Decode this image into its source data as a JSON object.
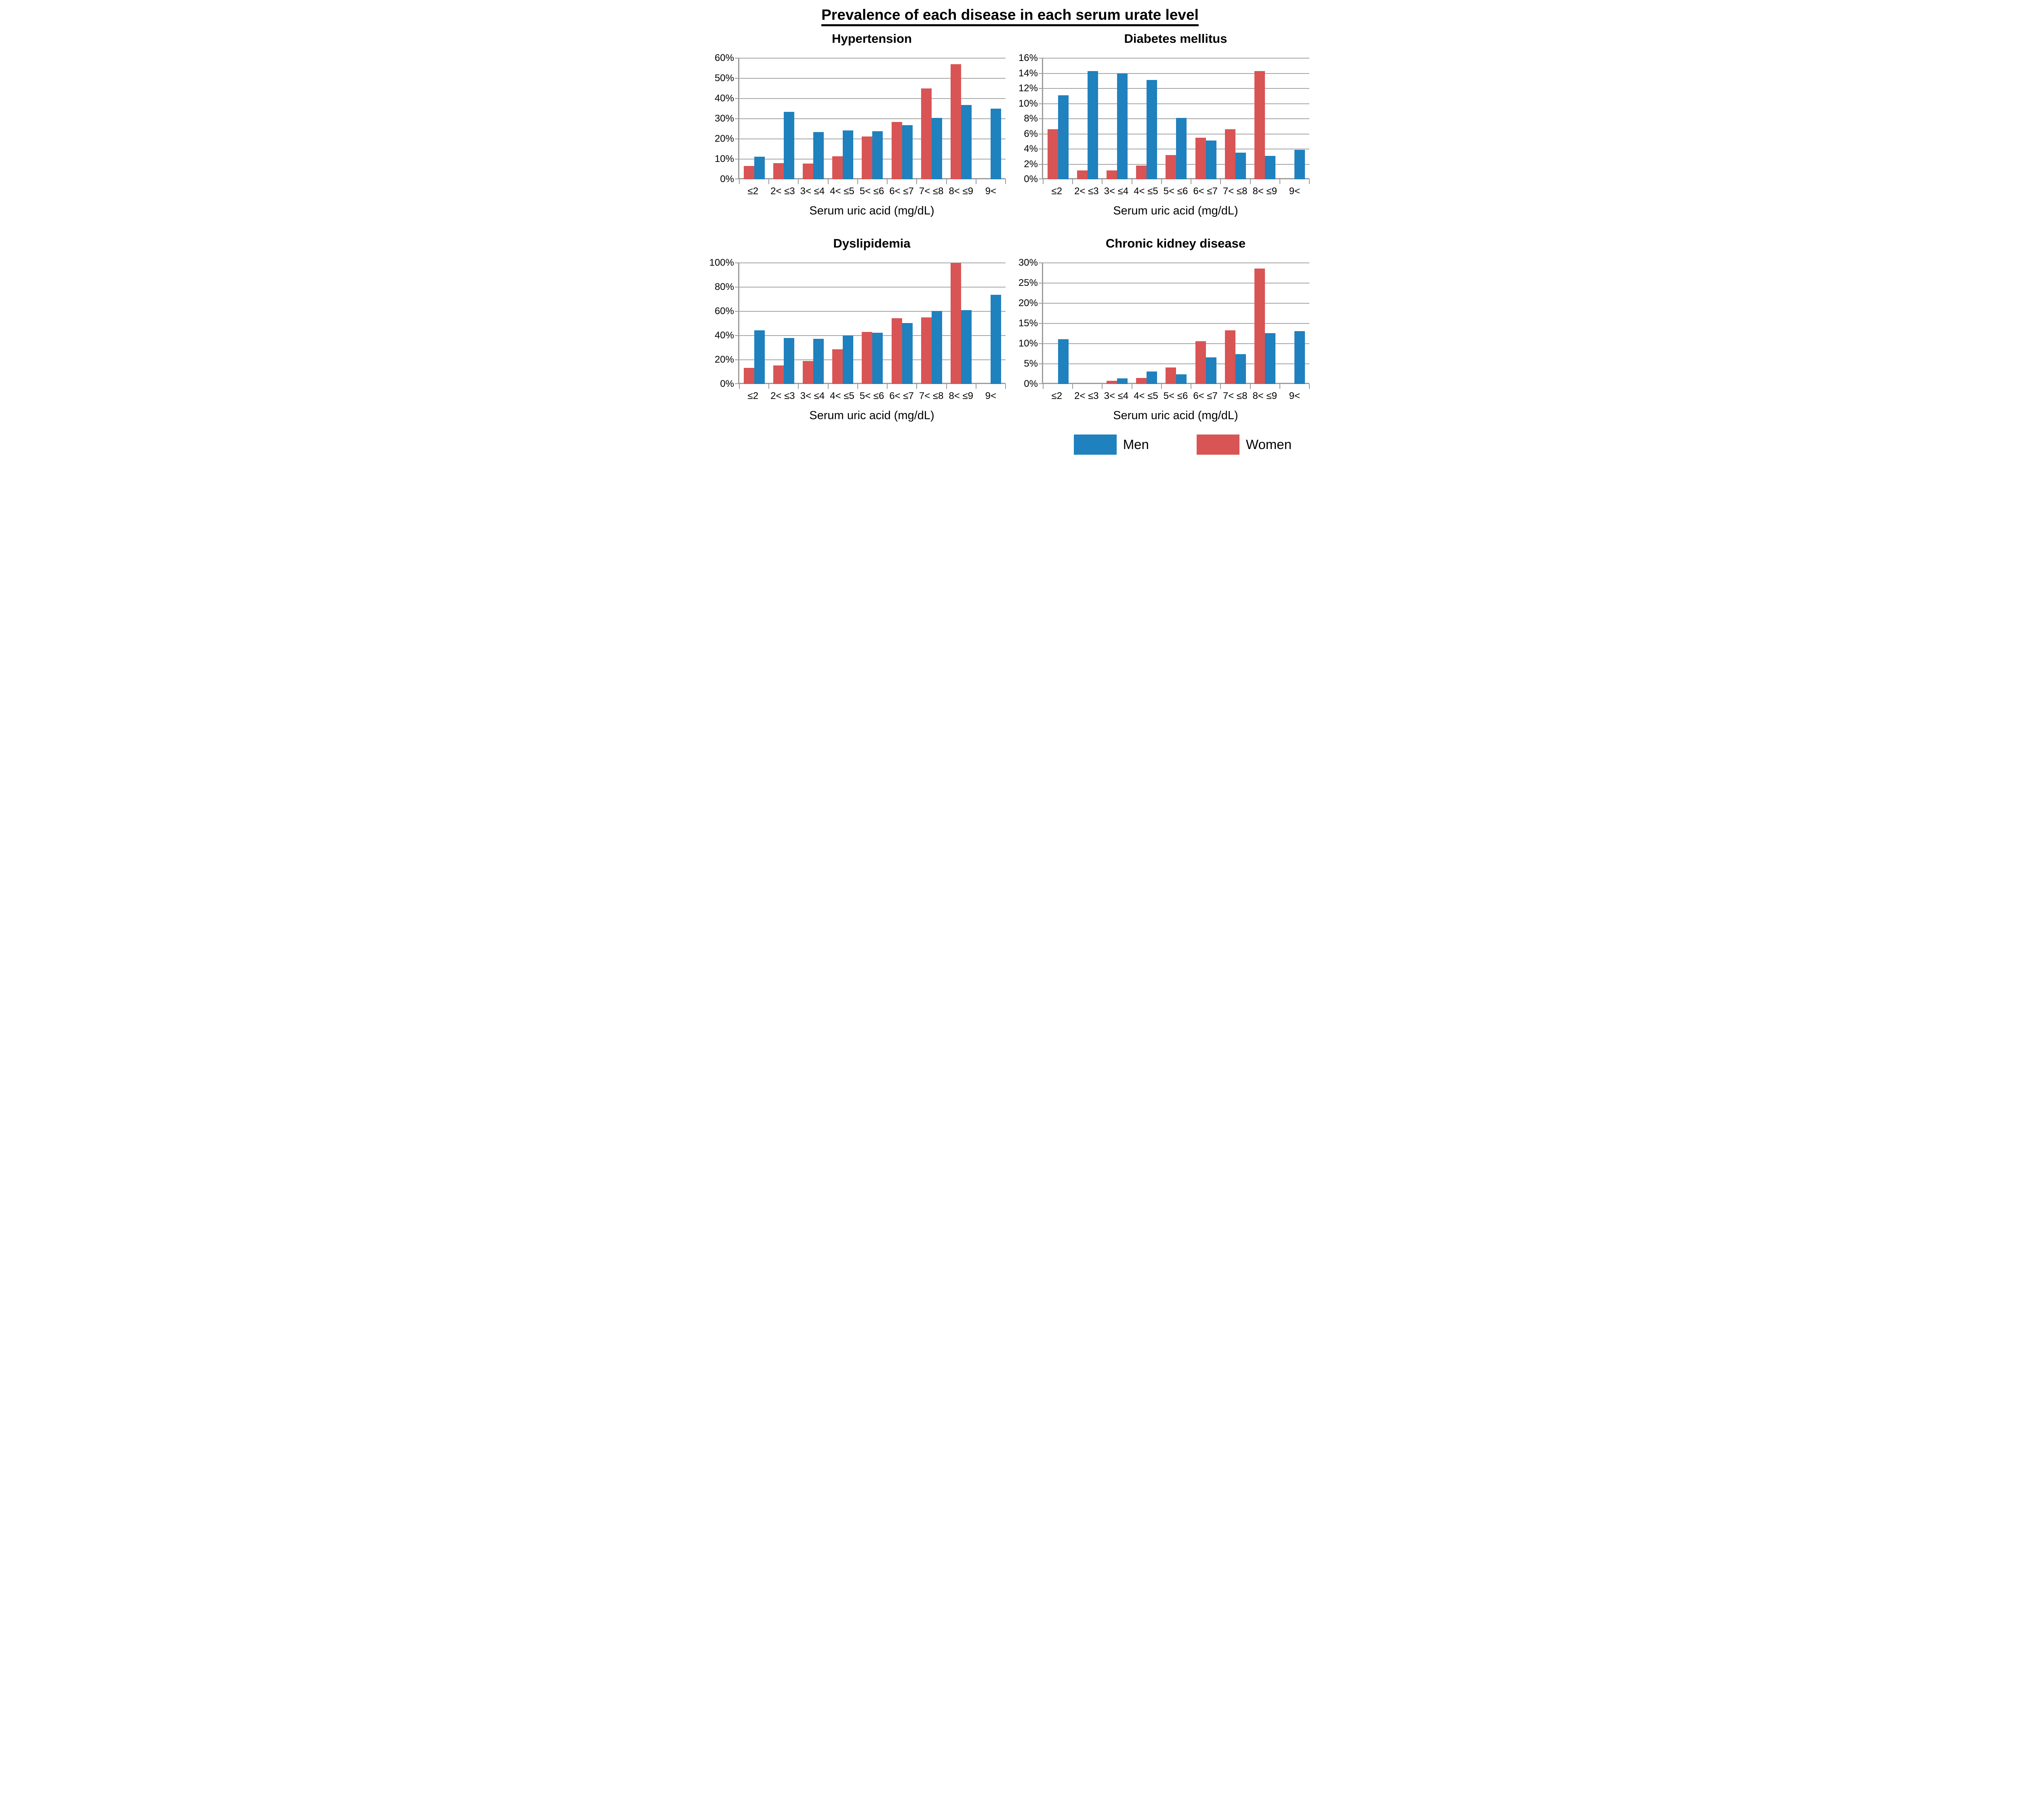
{
  "page_title": "Prevalence of each disease in each serum urate level",
  "colors": {
    "men": "#1f81bd",
    "women": "#d95454",
    "gridline": "#a6a6a6",
    "axis": "#9b9b9b",
    "text": "#000000"
  },
  "legend": {
    "position": "bottom-right",
    "items": [
      {
        "label": "Men",
        "series": "men"
      },
      {
        "label": "Women",
        "series": "women"
      }
    ]
  },
  "chart_data": [
    {
      "type": "bar",
      "title": "Hypertension",
      "xlabel": "Serum uric acid (mg/dL)",
      "categories": [
        "≤2",
        "2< ≤3",
        "3< ≤4",
        "4< ≤5",
        "5< ≤6",
        "6< ≤7",
        "7< ≤8",
        "8< ≤9",
        "9<"
      ],
      "ylim": [
        0,
        60
      ],
      "yticks": [
        0,
        10,
        20,
        30,
        40,
        50,
        60
      ],
      "ytick_labels": [
        "0%",
        "10%",
        "20%",
        "30%",
        "40%",
        "50%",
        "60%"
      ],
      "grid": true,
      "series": [
        {
          "name": "Women",
          "color_key": "women",
          "values": [
            6.7,
            8.0,
            7.9,
            11.5,
            21.3,
            28.4,
            45.0,
            57.0,
            0
          ]
        },
        {
          "name": "Men",
          "color_key": "men",
          "values": [
            11.2,
            33.4,
            23.4,
            24.3,
            23.8,
            26.9,
            30.4,
            36.8,
            35.0
          ]
        }
      ]
    },
    {
      "type": "bar",
      "title": "Diabetes mellitus",
      "xlabel": "Serum uric acid (mg/dL)",
      "categories": [
        "≤2",
        "2< ≤3",
        "3< ≤4",
        "4< ≤5",
        "5< ≤6",
        "6< ≤7",
        "7< ≤8",
        "8< ≤9",
        "9<"
      ],
      "ylim": [
        0,
        16
      ],
      "yticks": [
        0,
        2,
        4,
        6,
        8,
        10,
        12,
        14,
        16
      ],
      "ytick_labels": [
        "0%",
        "2%",
        "4%",
        "6%",
        "8%",
        "10%",
        "12%",
        "14%",
        "16%"
      ],
      "grid": true,
      "series": [
        {
          "name": "Women",
          "color_key": "women",
          "values": [
            6.6,
            1.2,
            1.2,
            1.8,
            3.2,
            5.5,
            6.6,
            14.3,
            0
          ]
        },
        {
          "name": "Men",
          "color_key": "men",
          "values": [
            11.1,
            14.3,
            14.0,
            13.1,
            8.1,
            5.1,
            3.5,
            3.1,
            3.9
          ]
        }
      ]
    },
    {
      "type": "bar",
      "title": "Dyslipidemia",
      "xlabel": "Serum uric acid (mg/dL)",
      "categories": [
        "≤2",
        "2< ≤3",
        "3< ≤4",
        "4< ≤5",
        "5< ≤6",
        "6< ≤7",
        "7< ≤8",
        "8< ≤9",
        "9<"
      ],
      "ylim": [
        0,
        100
      ],
      "yticks": [
        0,
        20,
        40,
        60,
        80,
        100
      ],
      "ytick_labels": [
        "0%",
        "20%",
        "40%",
        "60%",
        "80%",
        "100%"
      ],
      "grid": true,
      "series": [
        {
          "name": "Women",
          "color_key": "women",
          "values": [
            13.5,
            15.3,
            19.0,
            28.6,
            43.0,
            54.5,
            55.0,
            100.0,
            0
          ]
        },
        {
          "name": "Men",
          "color_key": "men",
          "values": [
            44.5,
            38.1,
            37.5,
            40.0,
            42.5,
            50.5,
            60.5,
            61.0,
            73.7
          ]
        }
      ]
    },
    {
      "type": "bar",
      "title": "Chronic kidney disease",
      "xlabel": "Serum uric acid (mg/dL)",
      "categories": [
        "≤2",
        "2< ≤3",
        "3< ≤4",
        "4< ≤5",
        "5< ≤6",
        "6< ≤7",
        "7< ≤8",
        "8< ≤9",
        "9<"
      ],
      "ylim": [
        0,
        30
      ],
      "yticks": [
        0,
        5,
        10,
        15,
        20,
        25,
        30
      ],
      "ytick_labels": [
        "0%",
        "5%",
        "10%",
        "15%",
        "20%",
        "25%",
        "30%"
      ],
      "grid": true,
      "series": [
        {
          "name": "Women",
          "color_key": "women",
          "values": [
            0,
            0,
            0.8,
            1.5,
            4.1,
            10.6,
            13.3,
            28.6,
            0
          ]
        },
        {
          "name": "Men",
          "color_key": "men",
          "values": [
            11.1,
            0,
            1.4,
            3.1,
            2.4,
            6.6,
            7.4,
            12.6,
            13.1
          ]
        }
      ]
    }
  ]
}
